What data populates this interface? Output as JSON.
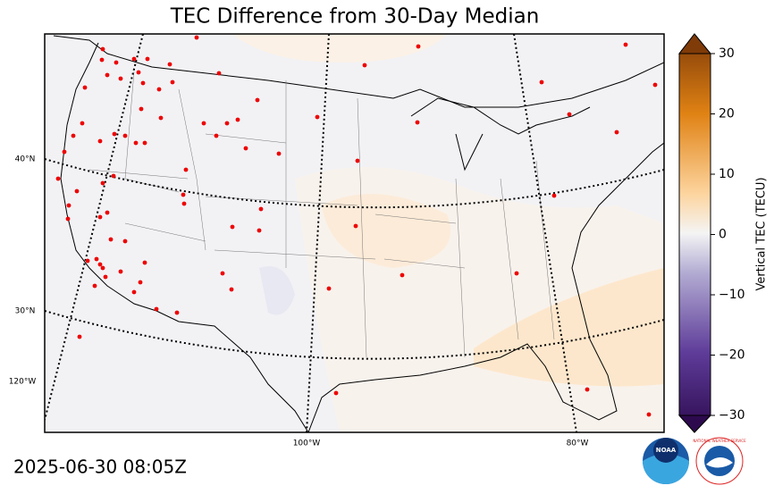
{
  "title": "TEC Difference from 30-Day Median",
  "map": {
    "lat_labels": [
      "40°N",
      "30°N"
    ],
    "lon_labels": [
      "120°W",
      "100°W",
      "80°W"
    ]
  },
  "colorbar": {
    "label": "Vertical TEC (TECU)",
    "lim": [
      -30,
      30
    ],
    "ticks": [
      {
        "value": 30,
        "label": "30"
      },
      {
        "value": 20,
        "label": "20"
      },
      {
        "value": 10,
        "label": "10"
      },
      {
        "value": 0,
        "label": "0"
      },
      {
        "value": -10,
        "label": "−10"
      },
      {
        "value": -20,
        "label": "−20"
      },
      {
        "value": -30,
        "label": "−30"
      }
    ]
  },
  "timestamp": "2025-06-30 08:05Z",
  "logos": {
    "noaa": "NOAA",
    "nws": "NATIONAL WEATHER SERVICE"
  }
}
